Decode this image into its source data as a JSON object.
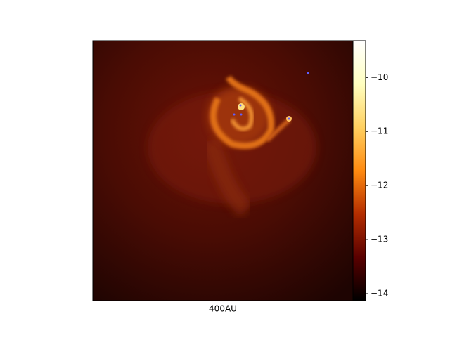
{
  "chart_data": {
    "type": "image",
    "xlabel": "400AU",
    "colorbar": {
      "clim": [
        -14.13,
        -9.32
      ],
      "ticks": [
        {
          "value": -10,
          "label": "−10"
        },
        {
          "value": -11,
          "label": "−11"
        },
        {
          "value": -12,
          "label": "−12"
        },
        {
          "value": -13,
          "label": "−13"
        },
        {
          "value": -14,
          "label": "−14"
        }
      ],
      "colormap": [
        "#000000",
        "#5a0000",
        "#b42d00",
        "#ff8a10",
        "#ffd060",
        "#ffffc0",
        "#ffffff"
      ]
    }
  }
}
